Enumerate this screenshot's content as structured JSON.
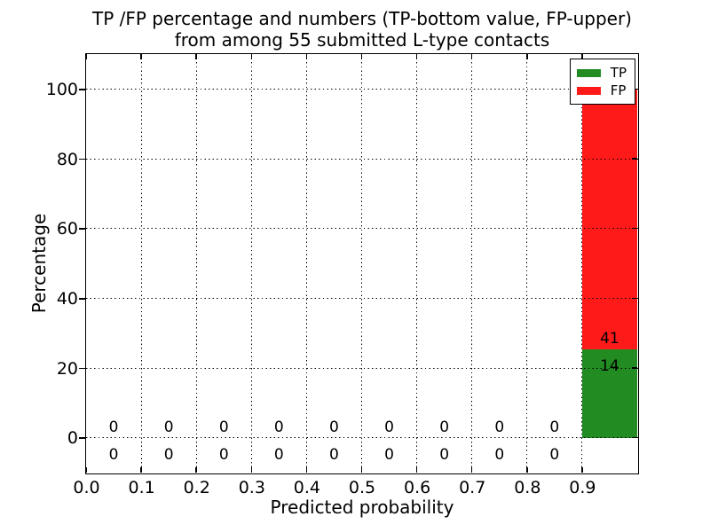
{
  "title": {
    "line1": "TP /FP percentage and numbers (TP-bottom value, FP-upper)",
    "line2": "from among 55 submitted L-type contacts"
  },
  "chart_data": {
    "type": "bar",
    "stacked": true,
    "title": "TP /FP percentage and numbers (TP-bottom value, FP-upper)\nfrom among 55 submitted L-type contacts",
    "xlabel": "Predicted probability",
    "ylabel": "Percentage",
    "xlim": [
      0.0,
      1.0
    ],
    "ylim": [
      -10,
      110
    ],
    "xticks": [
      "0.0",
      "0.1",
      "0.2",
      "0.3",
      "0.4",
      "0.5",
      "0.6",
      "0.7",
      "0.8",
      "0.9"
    ],
    "yticks": [
      "0",
      "20",
      "40",
      "60",
      "80",
      "100"
    ],
    "grid": "dotted",
    "total_contacts": 55,
    "bin_edges": [
      0.0,
      0.1,
      0.2,
      0.3,
      0.4,
      0.5,
      0.6,
      0.7,
      0.8,
      0.9,
      1.0
    ],
    "series": [
      {
        "name": "TP",
        "color": "#228b22",
        "counts": [
          0,
          0,
          0,
          0,
          0,
          0,
          0,
          0,
          0,
          14
        ],
        "percentages": [
          0,
          0,
          0,
          0,
          0,
          0,
          0,
          0,
          0,
          25.45
        ]
      },
      {
        "name": "FP",
        "color": "#ff1a1a",
        "counts": [
          0,
          0,
          0,
          0,
          0,
          0,
          0,
          0,
          0,
          41
        ],
        "percentages": [
          0,
          0,
          0,
          0,
          0,
          0,
          0,
          0,
          0,
          74.55
        ]
      }
    ],
    "legend": {
      "position": "upper right",
      "entries": [
        "TP",
        "FP"
      ]
    },
    "colors": {
      "background": "#ffffff",
      "spine": "#000000",
      "text": "#000000"
    }
  }
}
